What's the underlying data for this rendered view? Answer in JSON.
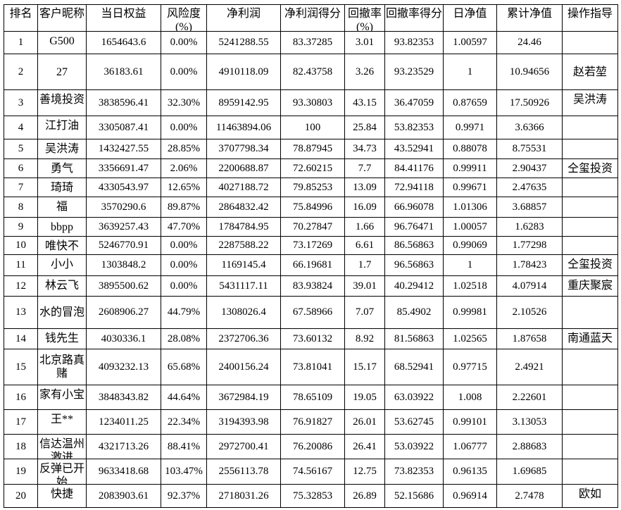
{
  "headers": [
    "排名",
    "客户昵称",
    "当日权益",
    "风险度(%)",
    "净利润",
    "净利润得分",
    "回撤率(%)",
    "回撤率得分",
    "日净值",
    "累计净值",
    "操作指导"
  ],
  "rows": [
    {
      "rank": "1",
      "name": "G500",
      "equity": "1654643.6",
      "risk": "0.00%",
      "profit": "5241288.55",
      "profit_score": "83.37285",
      "drawdown": "3.01",
      "drawdown_score": "93.82353",
      "daily_nav": "1.00597",
      "cum_nav": "24.46",
      "guide": ""
    },
    {
      "rank": "2",
      "name": "27",
      "equity": "36183.61",
      "risk": "0.00%",
      "profit": "4910118.09",
      "profit_score": "82.43758",
      "drawdown": "3.26",
      "drawdown_score": "93.23529",
      "daily_nav": "1",
      "cum_nav": "10.94656",
      "guide": "赵若堃"
    },
    {
      "rank": "3",
      "name": "善境投资",
      "equity": "3838596.41",
      "risk": "32.30%",
      "profit": "8959142.95",
      "profit_score": "93.30803",
      "drawdown": "43.15",
      "drawdown_score": "36.47059",
      "daily_nav": "0.87659",
      "cum_nav": "17.50926",
      "guide": "吴洪涛"
    },
    {
      "rank": "4",
      "name": "江打油",
      "equity": "3305087.41",
      "risk": "0.00%",
      "profit": "11463894.06",
      "profit_score": "100",
      "drawdown": "25.84",
      "drawdown_score": "53.82353",
      "daily_nav": "0.9971",
      "cum_nav": "3.6366",
      "guide": ""
    },
    {
      "rank": "5",
      "name": "吴洪涛",
      "equity": "1432427.55",
      "risk": "28.85%",
      "profit": "3707798.34",
      "profit_score": "78.87945",
      "drawdown": "34.73",
      "drawdown_score": "43.52941",
      "daily_nav": "0.88078",
      "cum_nav": "8.75531",
      "guide": ""
    },
    {
      "rank": "6",
      "name": "勇气",
      "equity": "3356691.47",
      "risk": "2.06%",
      "profit": "2200688.87",
      "profit_score": "72.60215",
      "drawdown": "7.7",
      "drawdown_score": "84.41176",
      "daily_nav": "0.99911",
      "cum_nav": "2.90437",
      "guide": "仝玺投资"
    },
    {
      "rank": "7",
      "name": "琦琦",
      "equity": "4330543.97",
      "risk": "12.65%",
      "profit": "4027188.72",
      "profit_score": "79.85253",
      "drawdown": "13.09",
      "drawdown_score": "72.94118",
      "daily_nav": "0.99671",
      "cum_nav": "2.47635",
      "guide": ""
    },
    {
      "rank": "8",
      "name": "福",
      "equity": "3570290.6",
      "risk": "89.87%",
      "profit": "2864832.42",
      "profit_score": "75.84996",
      "drawdown": "16.09",
      "drawdown_score": "66.96078",
      "daily_nav": "1.01306",
      "cum_nav": "3.68857",
      "guide": ""
    },
    {
      "rank": "9",
      "name": "bbpp",
      "equity": "3639257.43",
      "risk": "47.70%",
      "profit": "1784784.95",
      "profit_score": "70.27847",
      "drawdown": "1.66",
      "drawdown_score": "96.76471",
      "daily_nav": "1.00057",
      "cum_nav": "1.6283",
      "guide": ""
    },
    {
      "rank": "10",
      "name": "唯快不",
      "equity": "5246770.91",
      "risk": "0.00%",
      "profit": "2287588.22",
      "profit_score": "73.17269",
      "drawdown": "6.61",
      "drawdown_score": "86.56863",
      "daily_nav": "0.99069",
      "cum_nav": "1.77298",
      "guide": ""
    },
    {
      "rank": "11",
      "name": "小小",
      "equity": "1303848.2",
      "risk": "0.00%",
      "profit": "1169145.4",
      "profit_score": "66.19681",
      "drawdown": "1.7",
      "drawdown_score": "96.56863",
      "daily_nav": "1",
      "cum_nav": "1.78423",
      "guide": "仝玺投资"
    },
    {
      "rank": "12",
      "name": "林云飞",
      "equity": "3895500.62",
      "risk": "0.00%",
      "profit": "5431117.11",
      "profit_score": "83.93824",
      "drawdown": "39.01",
      "drawdown_score": "40.29412",
      "daily_nav": "1.02518",
      "cum_nav": "4.07914",
      "guide": "重庆聚宸"
    },
    {
      "rank": "13",
      "name": "水的冒泡",
      "equity": "2608906.27",
      "risk": "44.79%",
      "profit": "1308026.4",
      "profit_score": "67.58966",
      "drawdown": "7.07",
      "drawdown_score": "85.4902",
      "daily_nav": "0.99981",
      "cum_nav": "2.10526",
      "guide": ""
    },
    {
      "rank": "14",
      "name": "钱先生",
      "equity": "4030336.1",
      "risk": "28.08%",
      "profit": "2372706.36",
      "profit_score": "73.60132",
      "drawdown": "8.92",
      "drawdown_score": "81.56863",
      "daily_nav": "1.02565",
      "cum_nav": "1.87658",
      "guide": "南通蓝天"
    },
    {
      "rank": "15",
      "name": "北京路真赌",
      "equity": "4093232.13",
      "risk": "65.68%",
      "profit": "2400156.24",
      "profit_score": "73.81041",
      "drawdown": "15.17",
      "drawdown_score": "68.52941",
      "daily_nav": "0.97715",
      "cum_nav": "2.4921",
      "guide": ""
    },
    {
      "rank": "16",
      "name": "家有小宝",
      "equity": "3848343.82",
      "risk": "44.64%",
      "profit": "3672984.19",
      "profit_score": "78.65109",
      "drawdown": "19.05",
      "drawdown_score": "63.03922",
      "daily_nav": "1.008",
      "cum_nav": "2.22601",
      "guide": ""
    },
    {
      "rank": "17",
      "name": "王**",
      "equity": "1234011.25",
      "risk": "22.34%",
      "profit": "3194393.98",
      "profit_score": "76.91827",
      "drawdown": "26.01",
      "drawdown_score": "53.62745",
      "daily_nav": "0.99101",
      "cum_nav": "3.13053",
      "guide": ""
    },
    {
      "rank": "18",
      "name": "信达温州激进",
      "equity": "4321713.26",
      "risk": "88.41%",
      "profit": "2972700.41",
      "profit_score": "76.20086",
      "drawdown": "26.41",
      "drawdown_score": "53.03922",
      "daily_nav": "1.06777",
      "cum_nav": "2.88683",
      "guide": ""
    },
    {
      "rank": "19",
      "name": "反弹已开始",
      "equity": "9633418.68",
      "risk": "103.47%",
      "profit": "2556113.78",
      "profit_score": "74.56167",
      "drawdown": "12.75",
      "drawdown_score": "73.82353",
      "daily_nav": "0.96135",
      "cum_nav": "1.69685",
      "guide": ""
    },
    {
      "rank": "20",
      "name": "快捷",
      "equity": "2083903.61",
      "risk": "92.37%",
      "profit": "2718031.26",
      "profit_score": "75.32853",
      "drawdown": "26.89",
      "drawdown_score": "52.15686",
      "daily_nav": "0.96914",
      "cum_nav": "2.7478",
      "guide": "欧如"
    }
  ]
}
